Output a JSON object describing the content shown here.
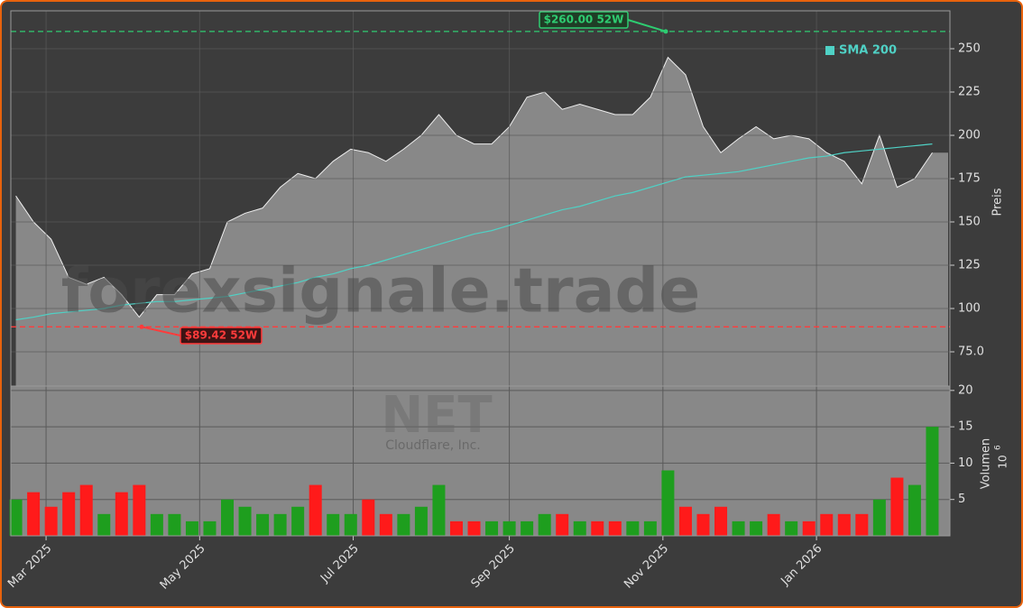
{
  "watermark": "forexsignale.trade",
  "ticker": "NET",
  "company": "Cloudflare, Inc.",
  "chart_data": [
    {
      "type": "area",
      "ylabel": "Preis",
      "color": "#888888",
      "x": [
        "2025-02-17",
        "2025-02-24",
        "2025-03-03",
        "2025-03-10",
        "2025-03-17",
        "2025-03-24",
        "2025-03-31",
        "2025-04-07",
        "2025-04-14",
        "2025-04-21",
        "2025-04-28",
        "2025-05-05",
        "2025-05-12",
        "2025-05-19",
        "2025-05-26",
        "2025-06-02",
        "2025-06-09",
        "2025-06-16",
        "2025-06-23",
        "2025-06-30",
        "2025-07-07",
        "2025-07-14",
        "2025-07-21",
        "2025-07-28",
        "2025-08-04",
        "2025-08-11",
        "2025-08-18",
        "2025-08-25",
        "2025-09-01",
        "2025-09-08",
        "2025-09-15",
        "2025-09-22",
        "2025-09-29",
        "2025-10-06",
        "2025-10-13",
        "2025-10-20",
        "2025-10-27",
        "2025-11-03",
        "2025-11-10",
        "2025-11-17",
        "2025-11-24",
        "2025-12-01",
        "2025-12-08",
        "2025-12-15",
        "2025-12-22",
        "2025-12-29",
        "2026-01-05",
        "2026-01-12",
        "2026-01-19",
        "2026-01-26",
        "2026-02-02",
        "2026-02-09",
        "2026-02-16"
      ],
      "values": [
        165,
        150,
        140,
        118,
        114,
        118,
        108,
        95,
        108,
        108,
        120,
        123,
        150,
        155,
        158,
        170,
        178,
        175,
        185,
        192,
        190,
        185,
        192,
        200,
        212,
        200,
        195,
        195,
        205,
        222,
        225,
        215,
        218,
        215,
        212,
        212,
        222,
        245,
        235,
        205,
        190,
        198,
        205,
        198,
        200,
        198,
        190,
        185,
        172,
        200,
        170,
        175,
        190
      ],
      "series": [
        {
          "name": "SMA 200",
          "color": "#4fd1c5",
          "values": [
            93.5,
            95,
            97,
            98,
            99,
            100,
            102,
            103,
            104,
            104,
            105,
            106,
            107,
            109,
            111,
            113,
            115,
            118,
            120,
            123,
            125,
            128,
            131,
            134,
            137,
            140,
            143,
            145,
            148,
            151,
            154,
            157,
            159,
            162,
            165,
            167,
            170,
            173,
            176,
            177,
            178,
            179,
            181,
            183,
            185,
            187,
            188,
            190,
            191,
            192,
            193,
            194,
            195
          ]
        }
      ],
      "high": {
        "value": 260,
        "label": "$260.00 52W"
      },
      "low": {
        "value": 89.42,
        "label": "$89.42 52W"
      },
      "xlim": [
        "2025-02-15",
        "2026-02-23"
      ],
      "xticks": [
        {
          "value": "2025-03-01",
          "label": "Mar 2025"
        },
        {
          "value": "2025-05-01",
          "label": "May 2025"
        },
        {
          "value": "2025-07-01",
          "label": "Jul 2025"
        },
        {
          "value": "2025-09-01",
          "label": "Sep 2025"
        },
        {
          "value": "2025-11-01",
          "label": "Nov 2025"
        },
        {
          "value": "2026-01-01",
          "label": "Jan 2026"
        }
      ],
      "ylim": [
        55.2,
        271.9
      ],
      "yticks": [
        {
          "value": 75,
          "label": "75.0"
        },
        100,
        125,
        150,
        175,
        200,
        225,
        250
      ],
      "grid": true
    },
    {
      "type": "bar",
      "ylabel": "Volumen",
      "y_unit_base": "10",
      "y_unit_exp": "6",
      "values": [
        5,
        6,
        4,
        6,
        7,
        3,
        6,
        7,
        3,
        3,
        2,
        2,
        5,
        4,
        3,
        3,
        4,
        7,
        3,
        3,
        5,
        3,
        3,
        4,
        7,
        2,
        2,
        2,
        2,
        2,
        3,
        3,
        2,
        2,
        2,
        2,
        2,
        9,
        4,
        3,
        4,
        2,
        2,
        3,
        2,
        2,
        3,
        3,
        3,
        5,
        8,
        7,
        15
      ],
      "up_color": "#1e9e1e",
      "down_color": "#ff1a1a",
      "ylim": [
        0,
        20.6
      ],
      "yticks": [
        5,
        10,
        15,
        20
      ],
      "grid": true
    }
  ]
}
